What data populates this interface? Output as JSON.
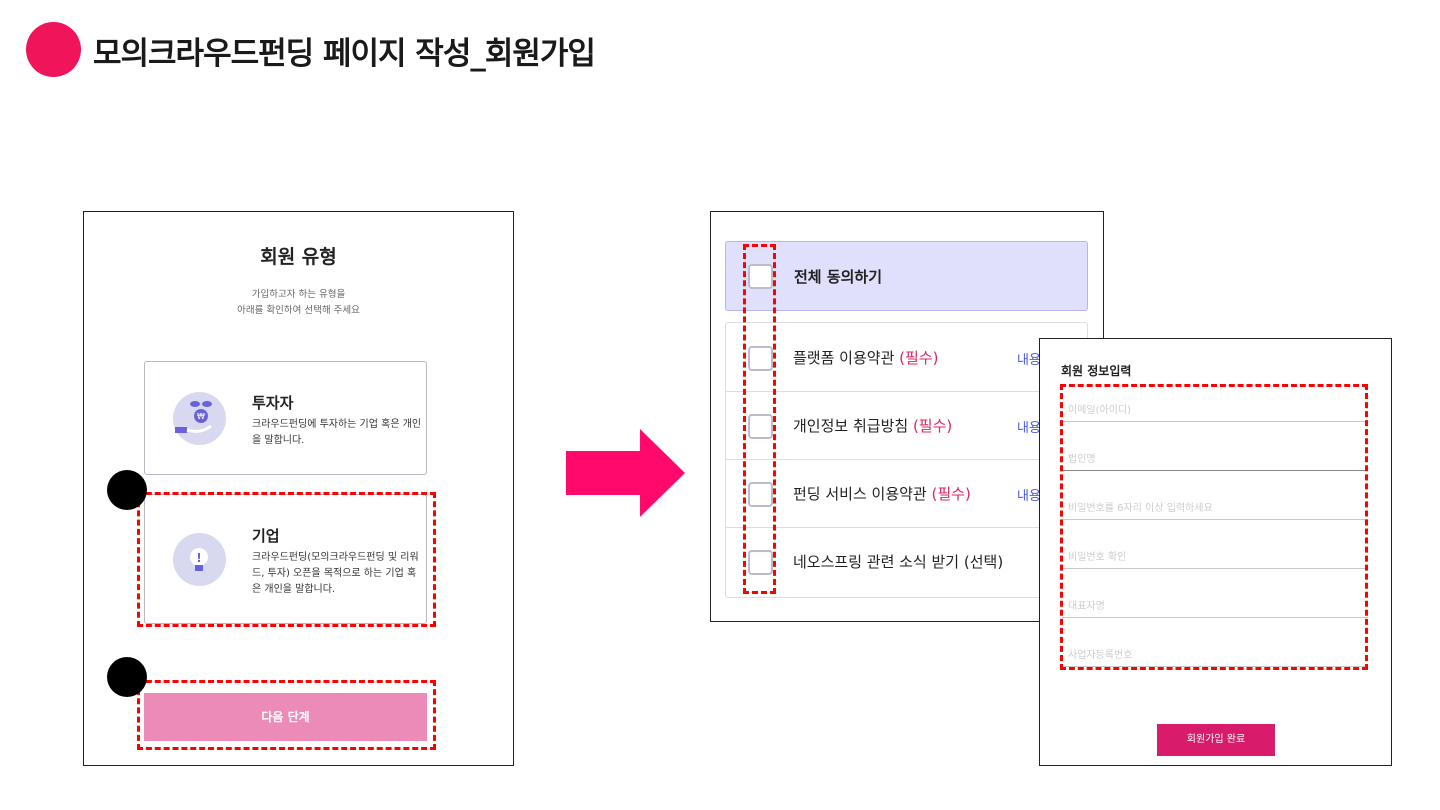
{
  "slide": {
    "title": "모의크라우드펀딩 페이지 작성_회원가입",
    "accent": "#f0145a"
  },
  "member_type": {
    "heading": "회원 유형",
    "subtitle_1": "가입하고자 하는 유형을",
    "subtitle_2": "아래를 확인하여 선택해 주세요",
    "options": [
      {
        "title": "투자자",
        "desc": "크라우드펀딩에 투자하는 기업 혹은 개인을 말합니다.",
        "icon": "plant-coin-icon"
      },
      {
        "title": "기업",
        "desc": "크라우드펀딩(모의크라우드펀딩 및 리워드, 투자) 오픈을 목적으로 하는 기업 혹은 개인을 말합니다.",
        "icon": "lightbulb-icon"
      }
    ],
    "next_button": "다음 단계",
    "next_color": "#ec8ab8"
  },
  "terms": {
    "all_agree": "전체 동의하기",
    "items": [
      {
        "label": "플랫폼 이용약관",
        "tag": "(필수)",
        "link": "내용"
      },
      {
        "label": "개인정보 취급방침",
        "tag": "(필수)",
        "link": "내용"
      },
      {
        "label": "펀딩 서비스 이용약관",
        "tag": "(필수)",
        "link": "내용"
      },
      {
        "label": "네오스프링 관련 소식 받기 (선택)",
        "tag": "",
        "link": ""
      }
    ]
  },
  "signup": {
    "heading": "회원 정보입력",
    "fields": [
      "이메일(아이디)",
      "법인명",
      "비밀번호를 6자리 이상 입력하세요",
      "비밀번호 확인",
      "대표자명",
      "사업자등록번호"
    ],
    "submit": "회원가입 완료",
    "submit_color": "#d81b6a"
  }
}
